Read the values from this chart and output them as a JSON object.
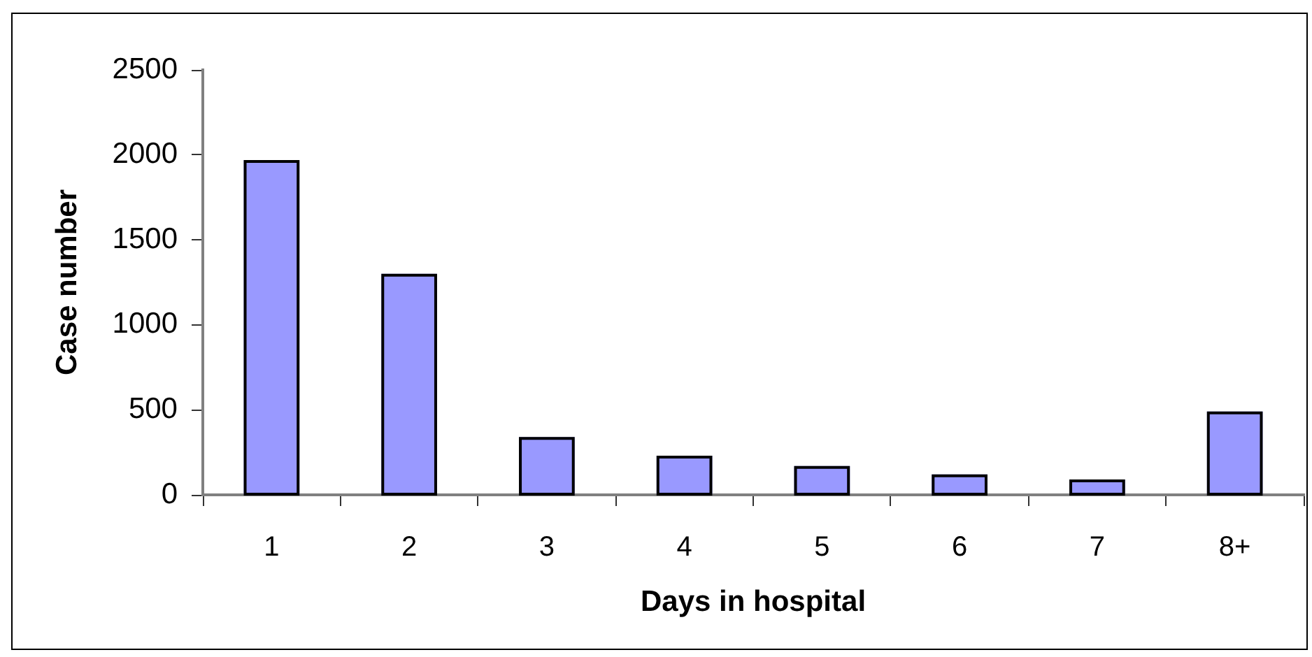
{
  "chart_data": {
    "type": "bar",
    "xlabel": "Days in hospital",
    "ylabel": "Case number",
    "categories": [
      "1",
      "2",
      "3",
      "4",
      "5",
      "6",
      "7",
      "8+"
    ],
    "values": [
      1970,
      1300,
      340,
      230,
      170,
      120,
      90,
      490
    ],
    "color": "#9999ff",
    "ylim": [
      0,
      2500
    ],
    "yticks": [
      0,
      500,
      1000,
      1500,
      2000,
      2500
    ]
  }
}
